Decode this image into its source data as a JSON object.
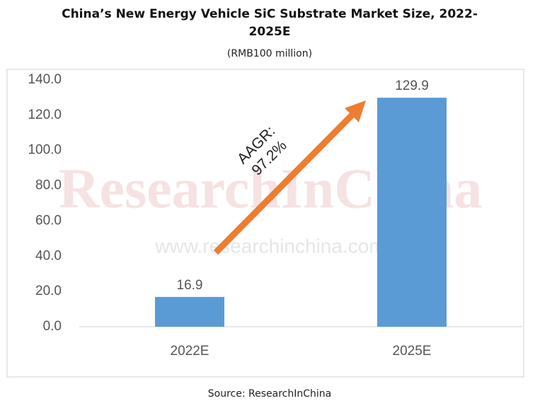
{
  "chart_data": {
    "type": "bar",
    "title": "China’s New Energy Vehicle SiC Substrate Market Size, 2022-2025E",
    "subtitle": "(RMB100 million)",
    "categories": [
      "2022E",
      "2025E"
    ],
    "values": [
      16.9,
      129.9
    ],
    "color": "#5b9bd5",
    "ylim": [
      0,
      140
    ],
    "yticks": [
      {
        "value": 0,
        "label": "0.0"
      },
      {
        "value": 20,
        "label": "20.0"
      },
      {
        "value": 40,
        "label": "40.0"
      },
      {
        "value": 60,
        "label": "60.0"
      },
      {
        "value": 80,
        "label": "80.0"
      },
      {
        "value": 100,
        "label": "100.0"
      },
      {
        "value": 120,
        "label": "120.0"
      },
      {
        "value": 140,
        "label": "140.0"
      }
    ],
    "grid": false,
    "annotation": [
      "AAGR:",
      "97.2%"
    ],
    "annotation_color": "#ed7d31",
    "watermark": [
      "ResearchInChina",
      "www.researchinchina.com"
    ],
    "source": "Source: ResearchInChina"
  }
}
